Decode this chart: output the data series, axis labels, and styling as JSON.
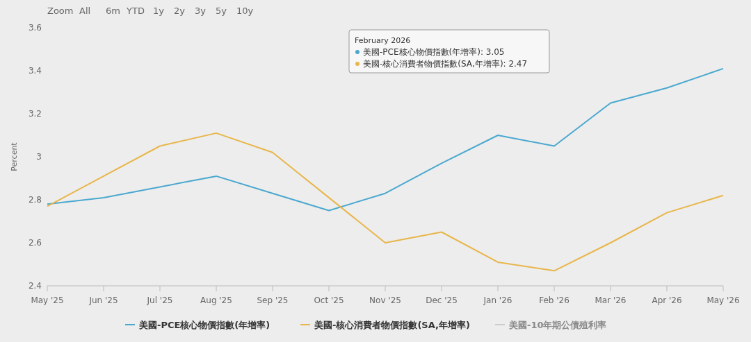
{
  "chart_data": {
    "type": "line",
    "ylabel": "Percent",
    "categories": [
      "May '25",
      "Jun '25",
      "Jul '25",
      "Aug '25",
      "Sep '25",
      "Oct '25",
      "Nov '25",
      "Dec '25",
      "Jan '26",
      "Feb '26",
      "Mar '26",
      "Apr '26",
      "May '26"
    ],
    "series": [
      {
        "name": "美國-PCE核心物價指數(年增率)",
        "color": "#4aa8cf",
        "values": [
          2.78,
          2.81,
          2.86,
          2.91,
          2.83,
          2.75,
          2.83,
          2.97,
          3.1,
          3.05,
          3.25,
          3.32,
          3.41
        ]
      },
      {
        "name": "美國-核心消費者物價指數(SA,年增率)",
        "color": "#e8b64a",
        "values": [
          2.77,
          2.91,
          3.05,
          3.11,
          3.02,
          2.81,
          2.6,
          2.65,
          2.51,
          2.47,
          2.6,
          2.74,
          2.82
        ]
      },
      {
        "name": "美國-10年期公債殖利率",
        "color": "#cccccc",
        "values": [
          null,
          null,
          null,
          null,
          null,
          null,
          null,
          null,
          null,
          null,
          null,
          null,
          null
        ]
      }
    ],
    "ylim": [
      2.4,
      3.6
    ],
    "yticks": [
      2.4,
      2.6,
      2.8,
      {
        "value": 3,
        "label": "3"
      },
      3.2,
      3.4,
      3.6
    ],
    "grid": false,
    "legend": "bottom",
    "marker": "none",
    "line_style": "solid",
    "annotations": [
      "Zoom",
      "All",
      "6m",
      "YTD",
      "1y",
      "2y",
      "3y",
      "5y",
      "10y",
      "February 2026",
      "美國-PCE核心物價指數(年增率): 3.05",
      "美國-核心消費者物價指數(SA,年增率): 2.47"
    ]
  }
}
